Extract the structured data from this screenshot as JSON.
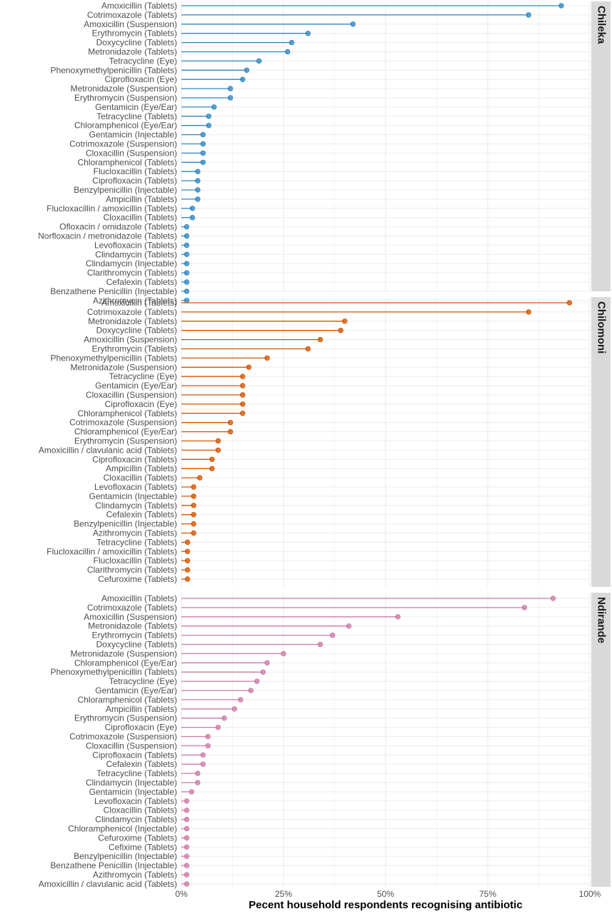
{
  "chart_data": {
    "type": "lollipop",
    "xlabel": "Pecent household respondents recognising antibiotic",
    "x_ticks": [
      "0%",
      "25%",
      "50%",
      "75%",
      "100%"
    ],
    "xlim": [
      0,
      100
    ],
    "grid": true,
    "panels": [
      {
        "name": "Chileka",
        "color": "#2E86C1",
        "categories": [
          "Amoxicillin (Tablets)",
          "Cotrimoxazole (Tablets)",
          "Amoxicillin (Suspension)",
          "Erythromycin (Tablets)",
          "Doxycycline (Tablets)",
          "Metronidazole (Tablets)",
          "Tetracycline (Eye)",
          "Phenoxymethylpenicillin (Tablets)",
          "Ciprofloxacin (Eye)",
          "Metronidazole (Suspension)",
          "Erythromycin (Suspension)",
          "Gentamicin (Eye/Ear)",
          "Tetracycline (Tablets)",
          "Chloramphenicol (Eye/Ear)",
          "Gentamicin (Injectable)",
          "Cotrimoxazole (Suspension)",
          "Cloxacillin (Suspension)",
          "Chloramphenicol (Tablets)",
          "Flucloxacillin (Tablets)",
          "Ciprofloxacin (Tablets)",
          "Benzylpenicillin (Injectable)",
          "Ampicillin (Tablets)",
          "Flucloxacillin / amoxicillin (Tablets)",
          "Cloxacillin (Tablets)",
          "Ofloxacin / ornidazole (Tablets)",
          "Norfloxacin / metronidazole (Tablets)",
          "Levofloxacin (Tablets)",
          "Clindamycin (Tablets)",
          "Clindamycin (Injectable)",
          "Clarithromycin (Tablets)",
          "Cefalexin (Tablets)",
          "Benzathene Penicillin (Injectable)",
          "Azithromycin (Tablets)"
        ],
        "values": [
          93,
          85,
          42,
          31,
          27,
          26,
          19,
          16,
          15,
          12,
          12,
          8,
          6.7,
          6.7,
          5.3,
          5.3,
          5.3,
          5.3,
          4,
          4,
          4,
          4,
          2.7,
          2.7,
          1.3,
          1.3,
          1.3,
          1.3,
          1.3,
          1.3,
          1.3,
          1.3,
          1.3
        ]
      },
      {
        "name": "Chilomoni",
        "color": "#D35400",
        "categories": [
          "Amoxicillin (Tablets)",
          "Cotrimoxazole (Tablets)",
          "Metronidazole (Tablets)",
          "Doxycycline (Tablets)",
          "Amoxicillin (Suspension)",
          "Erythromycin (Tablets)",
          "Phenoxymethylpenicillin (Tablets)",
          "Metronidazole (Suspension)",
          "Tetracycline (Eye)",
          "Gentamicin (Eye/Ear)",
          "Cloxacillin (Suspension)",
          "Ciprofloxacin (Eye)",
          "Chloramphenicol (Tablets)",
          "Cotrimoxazole (Suspension)",
          "Chloramphenicol (Eye/Ear)",
          "Erythromycin (Suspension)",
          "Amoxicillin / clavulanic acid (Tablets)",
          "Ciprofloxacin (Tablets)",
          "Ampicillin (Tablets)",
          "Cloxacillin (Tablets)",
          "Levofloxacin (Tablets)",
          "Gentamicin (Injectable)",
          "Clindamycin (Tablets)",
          "Cefalexin (Tablets)",
          "Benzylpenicillin (Injectable)",
          "Azithromycin (Tablets)",
          "Tetracycline (Tablets)",
          "Flucloxacillin / amoxicillin (Tablets)",
          "Flucloxacillin (Tablets)",
          "Clarithromycin (Tablets)",
          "Cefuroxime (Tablets)"
        ],
        "values": [
          95,
          85,
          40,
          39,
          34,
          31,
          21,
          16.5,
          15,
          15,
          15,
          15,
          15,
          12,
          12,
          9,
          9,
          7.5,
          7.5,
          4.5,
          3,
          3,
          3,
          3,
          3,
          3,
          1.5,
          1.5,
          1.5,
          1.5,
          1.5
        ]
      },
      {
        "name": "Ndirande",
        "color": "#CC79A7",
        "categories": [
          "Amoxicillin (Tablets)",
          "Cotrimoxazole (Tablets)",
          "Amoxicillin (Suspension)",
          "Metronidazole (Tablets)",
          "Erythromycin (Tablets)",
          "Doxycycline (Tablets)",
          "Metronidazole (Suspension)",
          "Chloramphenicol (Eye/Ear)",
          "Phenoxymethylpenicillin (Tablets)",
          "Tetracycline (Eye)",
          "Gentamicin (Eye/Ear)",
          "Chloramphenicol (Tablets)",
          "Ampicillin (Tablets)",
          "Erythromycin (Suspension)",
          "Ciprofloxacin (Eye)",
          "Cotrimoxazole (Suspension)",
          "Cloxacillin (Suspension)",
          "Ciprofloxacin (Tablets)",
          "Cefalexin (Tablets)",
          "Tetracycline (Tablets)",
          "Clindamycin (Injectable)",
          "Gentamicin (Injectable)",
          "Levofloxacin (Tablets)",
          "Cloxacillin (Tablets)",
          "Clindamycin (Tablets)",
          "Chloramphenicol (Injectable)",
          "Cefuroxime (Tablets)",
          "Cefixime (Tablets)",
          "Benzylpenicillin (Injectable)",
          "Benzathene Penicillin (Injectable)",
          "Azithromycin (Tablets)",
          "Amoxicillin / clavulanic acid (Tablets)"
        ],
        "values": [
          91,
          84,
          53,
          41,
          37,
          34,
          25,
          21,
          20,
          18.5,
          17,
          14.5,
          13,
          10.5,
          9,
          6.5,
          6.5,
          5.3,
          5.3,
          4,
          4,
          2.5,
          1.3,
          1.3,
          1.3,
          1.3,
          1.3,
          1.3,
          1.3,
          1.3,
          1.3,
          1.3
        ]
      }
    ]
  }
}
